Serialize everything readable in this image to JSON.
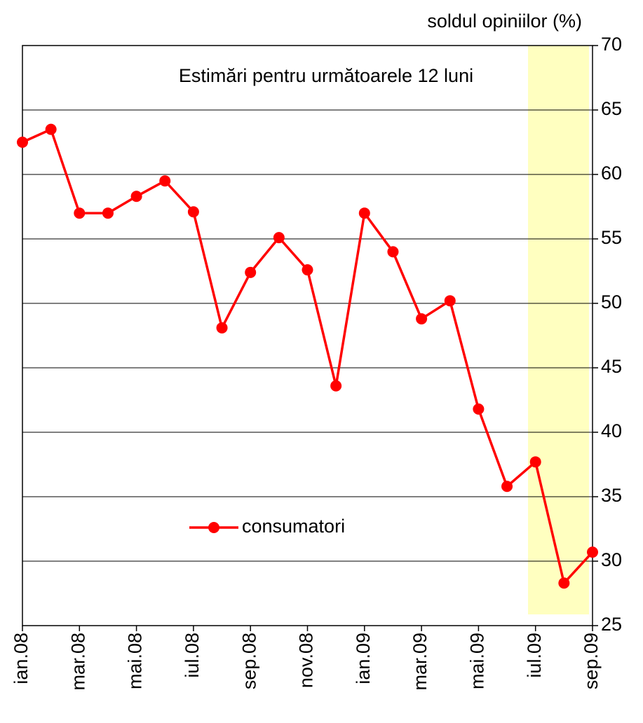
{
  "chart_data": {
    "type": "line",
    "y_axis_label": "soldul opiniilor (%)",
    "annotation": "Estimări pentru următoarele 12 luni",
    "categories": [
      "ian.08",
      null,
      "mar.08",
      null,
      "mai.08",
      null,
      "iul.08",
      null,
      "sep.08",
      null,
      "nov.08",
      null,
      "ian.09",
      null,
      "mar.09",
      null,
      "mai.09",
      null,
      "iul.09",
      null,
      "sep.09"
    ],
    "series": [
      {
        "name": "consumatori",
        "color": "#ff0000",
        "values": [
          62.5,
          63.5,
          57,
          57,
          58.3,
          59.5,
          57.1,
          48.1,
          52.4,
          55.1,
          52.6,
          43.6,
          57,
          54,
          48.8,
          50.2,
          41.8,
          35.8,
          37.7,
          28.3,
          30.7
        ]
      }
    ],
    "ylim": [
      25,
      70
    ],
    "yticks": [
      25,
      30,
      35,
      40,
      45,
      50,
      55,
      60,
      65,
      70
    ],
    "grid": true,
    "y_axis_side": "right"
  }
}
